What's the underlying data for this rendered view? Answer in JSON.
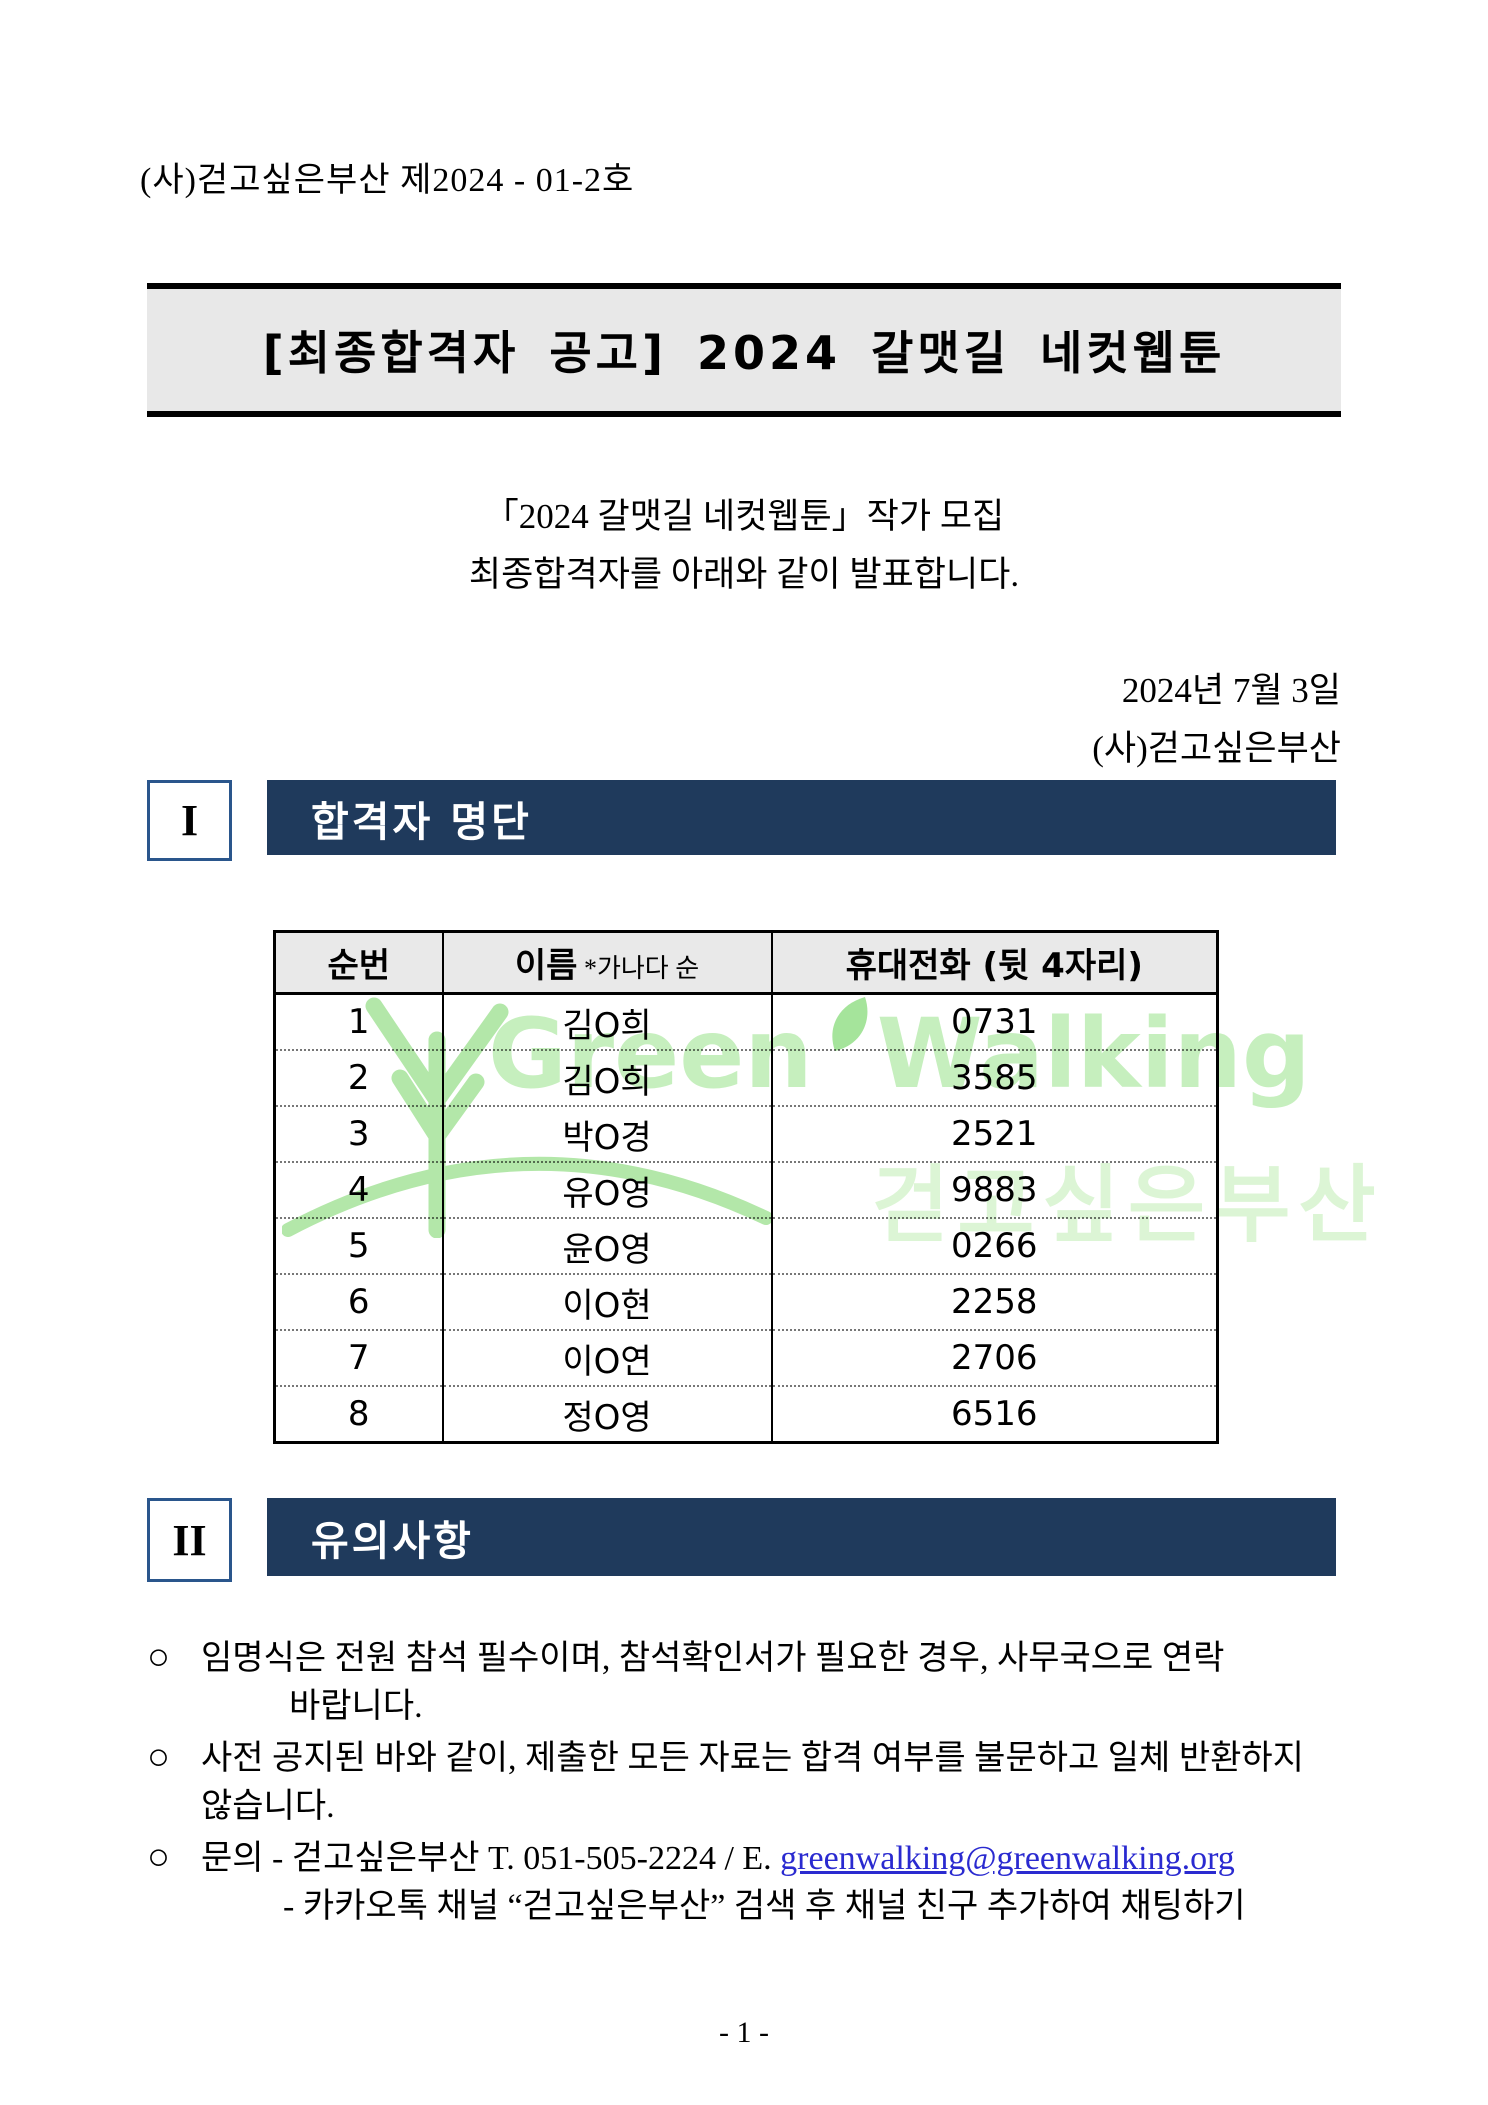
{
  "doc_number": "(사)걷고싶은부산 제2024 - 01-2호",
  "banner": {
    "title": "[최종합격자 공고] 2024 갈맷길 네컷웹툰"
  },
  "intro": {
    "line1": "「2024 갈맷길 네컷웹툰」작가 모집",
    "line2": "최종합격자를 아래와 같이 발표합니다."
  },
  "date_block": {
    "date": "2024년 7월 3일",
    "org": "(사)걷고싶은부산"
  },
  "sections": [
    {
      "numeral": "I",
      "title": "합격자 명단"
    },
    {
      "numeral": "II",
      "title": "유의사항"
    }
  ],
  "table": {
    "headers": [
      {
        "main": "순번",
        "sub": ""
      },
      {
        "main": "이름",
        "sub": "*가나다 순"
      },
      {
        "main": "휴대전화 (뒷 4자리)",
        "sub": ""
      }
    ],
    "rows": [
      [
        "1",
        "김O희",
        "0731"
      ],
      [
        "2",
        "김O희",
        "3585"
      ],
      [
        "3",
        "박O경",
        "2521"
      ],
      [
        "4",
        "유O영",
        "9883"
      ],
      [
        "5",
        "윤O영",
        "0266"
      ],
      [
        "6",
        "이O현",
        "2258"
      ],
      [
        "7",
        "이O연",
        "2706"
      ],
      [
        "8",
        "정O영",
        "6516"
      ]
    ]
  },
  "watermark": {
    "english_left": "Green",
    "english_right": "Walking",
    "korean": "걷고싶은부산"
  },
  "notes": {
    "lines": [
      {
        "bullet": "○",
        "indent": 0,
        "text": "임명식은 전원 참석 필수이며, 참석확인서가 필요한 경우, 사무국으로 연락"
      },
      {
        "bullet": "",
        "indent": 2,
        "text": "바랍니다."
      },
      {
        "bullet": "○",
        "indent": 0,
        "text": "사전 공지된 바와 같이, 제출한 모든 자료는 합격 여부를 불문하고 일체 반환하지"
      },
      {
        "bullet": "",
        "indent": 1,
        "text": "않습니다."
      },
      {
        "bullet": "○",
        "indent": 0,
        "text": "문의 - 걷고싶은부산 T. 051-505-2224 / E. ",
        "link": "greenwalking@greenwalking.org"
      },
      {
        "bullet": "",
        "indent": 3,
        "text": "- 카카오톡 채널 “걷고싶은부산” 검색 후 채널 친구 추가하여 채팅하기"
      }
    ]
  },
  "footer": {
    "page_label": "- 1 -"
  },
  "colors": {
    "section_bar": "#1f3a5c",
    "numeral_box_border": "#2a568c",
    "banner_bg": "#e8e8e8",
    "table_header_bg": "#e9e9e9",
    "watermark_green": "#c6efbe",
    "link_blue": "#2a2ad0"
  }
}
